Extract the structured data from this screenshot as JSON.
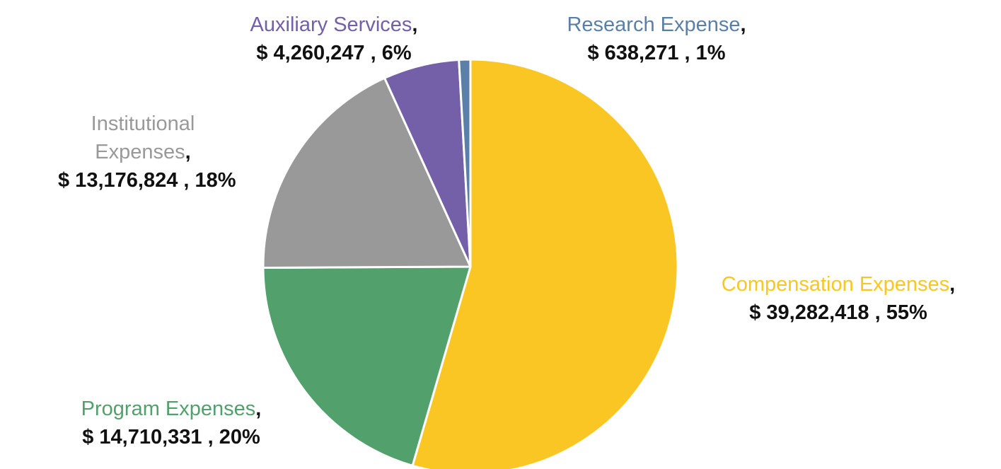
{
  "chart_data": {
    "type": "pie",
    "categories": [
      "Compensation Expenses",
      "Program Expenses",
      "Institutional Expenses",
      "Auxiliary Services",
      "Research Expense"
    ],
    "values": [
      39282418,
      14710331,
      13176824,
      4260247,
      638271
    ],
    "value_labels": [
      "$ 39,282,418 , 55%",
      "$ 14,710,331 , 20%",
      "$ 13,176,824 , 18%",
      "$ 4,260,247 , 6%",
      "$ 638,271 , 1%"
    ],
    "label_separator": ",",
    "colors": [
      "#f9c623",
      "#52a06b",
      "#999999",
      "#7460a8",
      "#5a7fa8"
    ]
  }
}
